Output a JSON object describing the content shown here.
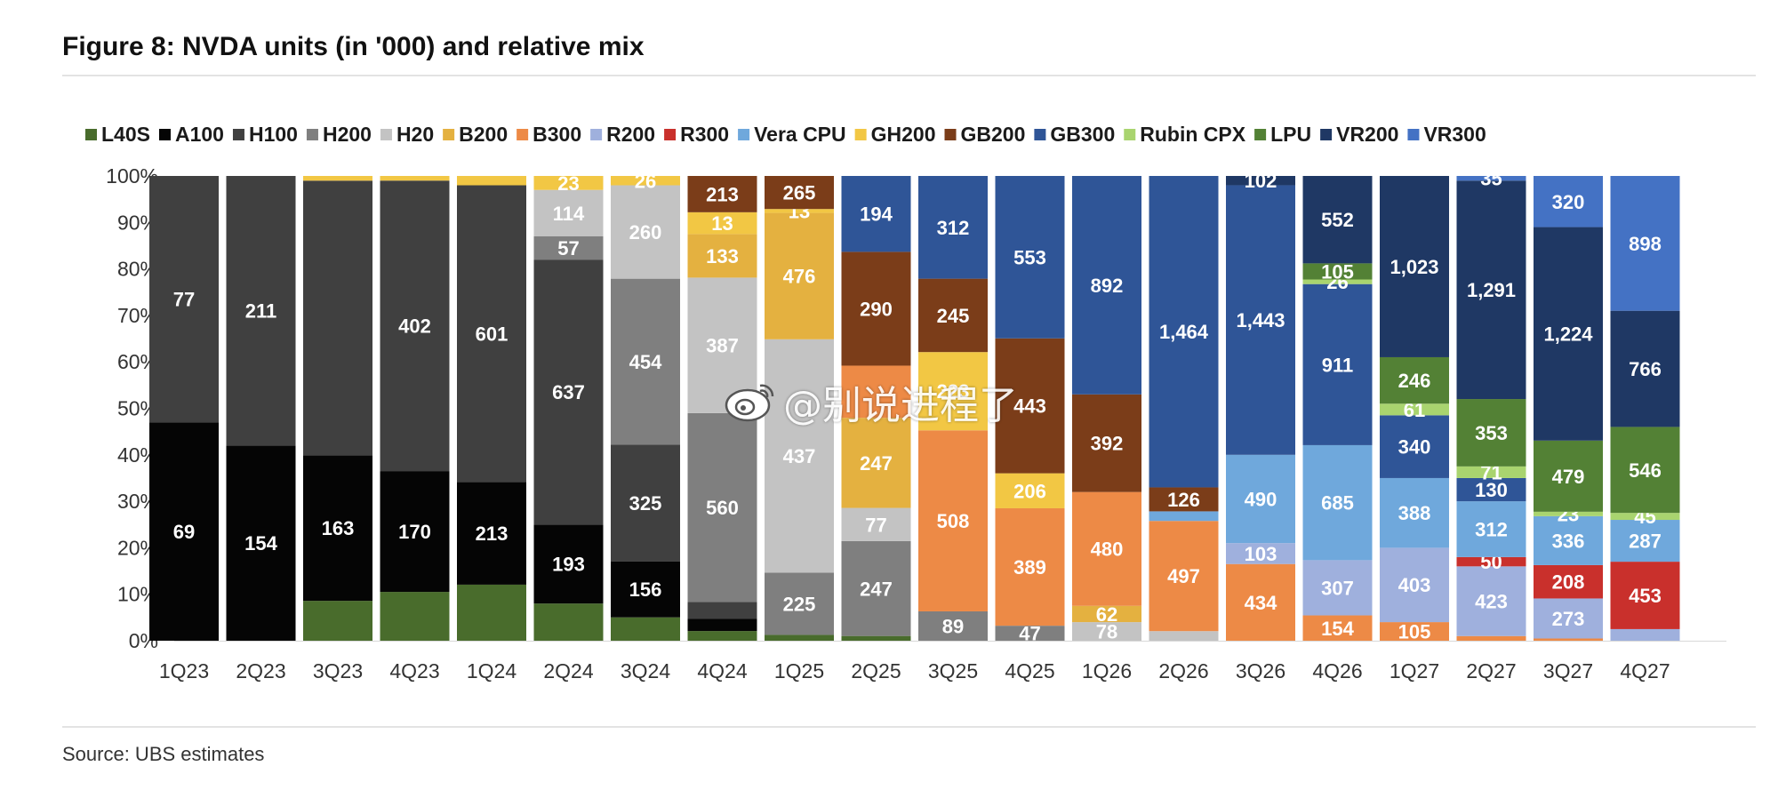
{
  "title": "Figure 8: NVDA units (in '000) and relative mix",
  "source": "Source: UBS estimates",
  "watermark": {
    "text": "@别说进程了",
    "icon": "weibo-icon"
  },
  "chart_data": {
    "type": "bar",
    "stacked": "percent",
    "categories": [
      "1Q23",
      "2Q23",
      "3Q23",
      "4Q23",
      "1Q24",
      "2Q24",
      "3Q24",
      "4Q24",
      "1Q25",
      "2Q25",
      "3Q25",
      "4Q25",
      "1Q26",
      "2Q26",
      "3Q26",
      "4Q26",
      "1Q27",
      "2Q27",
      "3Q27",
      "4Q27"
    ],
    "y_ticks": [
      "0%",
      "10%",
      "20%",
      "30%",
      "40%",
      "50%",
      "60%",
      "70%",
      "80%",
      "90%",
      "100%"
    ],
    "ylim": [
      0,
      1
    ],
    "legend_position": "top",
    "grid": false,
    "series": [
      {
        "name": "L40S",
        "color": "#496c2c",
        "values": [
          0,
          0,
          0.085,
          0.105,
          0.12,
          0.08,
          0.05,
          0.02,
          0.015,
          0.01,
          0,
          0,
          0,
          0,
          0,
          0,
          0,
          0,
          0,
          0
        ]
      },
      {
        "name": "A100",
        "color": "#050505",
        "values": [
          0.47,
          0.42,
          0.31,
          0.26,
          0.22,
          0.17,
          0.12,
          0.025,
          0,
          0,
          0,
          0,
          0,
          0,
          0,
          0,
          0,
          0,
          0,
          0
        ],
        "labels": [
          "69",
          "154",
          "163",
          "170",
          "213",
          "193",
          "156",
          "",
          "",
          "",
          "",
          "",
          "",
          "",
          "",
          "",
          "",
          "",
          "",
          ""
        ]
      },
      {
        "name": "H100",
        "color": "#404040",
        "values": [
          0.53,
          0.58,
          0.585,
          0.625,
          0.635,
          0.57,
          0.25,
          0.035,
          0,
          0,
          0,
          0,
          0,
          0,
          0,
          0,
          0,
          0,
          0,
          0
        ],
        "labels": [
          "77",
          "211",
          "",
          "402",
          "601",
          "637",
          "325",
          "",
          "",
          "",
          "",
          "",
          "",
          "",
          "",
          "",
          "",
          "",
          "",
          ""
        ]
      },
      {
        "name": "H200",
        "color": "#7f7f7f",
        "values": [
          0,
          0,
          0,
          0,
          0,
          0.05,
          0.355,
          0.39,
          0.16,
          0.2,
          0.06,
          0.03,
          0,
          0,
          0,
          0,
          0,
          0,
          0,
          0
        ],
        "labels": [
          "",
          "",
          "",
          "",
          "",
          "57",
          "454",
          "560",
          "225",
          "247",
          "89",
          "47",
          "",
          "",
          "",
          "",
          "",
          "",
          "",
          ""
        ]
      },
      {
        "name": "H20",
        "color": "#c3c3c3",
        "values": [
          0,
          0,
          0,
          0,
          0,
          0.1,
          0.2,
          0.28,
          0.6,
          0.07,
          0,
          0,
          0.04,
          0.02,
          0,
          0,
          0,
          0,
          0,
          0
        ],
        "labels": [
          "",
          "",
          "",
          "",
          "",
          "114",
          "260",
          "387",
          "437",
          "77",
          "",
          "",
          "78",
          "",
          "",
          "",
          "",
          "",
          "",
          ""
        ]
      },
      {
        "name": "B200",
        "color": "#e4b140",
        "values": [
          0,
          0,
          0,
          0,
          0,
          0,
          0,
          0.09,
          0.325,
          0.19,
          0,
          0,
          0.035,
          0,
          0,
          0,
          0,
          0,
          0,
          0
        ],
        "labels": [
          "",
          "",
          "",
          "",
          "",
          "",
          "",
          "133",
          "476",
          "247",
          "",
          "",
          "62",
          "",
          "",
          "",
          "",
          "",
          "",
          ""
        ]
      },
      {
        "name": "B300",
        "color": "#ed8a46",
        "values": [
          0,
          0,
          0,
          0,
          0,
          0,
          0,
          0,
          0,
          0.11,
          0.37,
          0.235,
          0.245,
          0.23,
          0.165,
          0.055,
          0.04,
          0.01,
          0.005,
          0
        ],
        "labels": [
          "",
          "",
          "",
          "",
          "",
          "",
          "",
          "",
          "",
          "",
          "508",
          "389",
          "480",
          "497",
          "434",
          "154",
          "105",
          "",
          "",
          ""
        ]
      },
      {
        "name": "R200",
        "color": "#9fb0dd",
        "values": [
          0,
          0,
          0,
          0,
          0,
          0,
          0,
          0,
          0,
          0,
          0,
          0,
          0,
          0,
          0.045,
          0.12,
          0.16,
          0.15,
          0.09,
          0.025
        ],
        "labels": [
          "",
          "",
          "",
          "",
          "",
          "",
          "",
          "",
          "",
          "",
          "",
          "",
          "",
          "",
          "103",
          "307",
          "403",
          "423",
          "273",
          ""
        ]
      },
      {
        "name": "R300",
        "color": "#c9302c",
        "values": [
          0,
          0,
          0,
          0,
          0,
          0,
          0,
          0,
          0,
          0,
          0,
          0,
          0,
          0,
          0,
          0,
          0,
          0.02,
          0.075,
          0.145
        ],
        "labels": [
          "",
          "",
          "",
          "",
          "",
          "",
          "",
          "",
          "",
          "",
          "",
          "",
          "",
          "",
          "",
          "",
          "",
          "50",
          "208",
          "453"
        ]
      },
      {
        "name": "Vera CPU",
        "color": "#6fa8dc",
        "values": [
          0,
          0,
          0,
          0,
          0,
          0,
          0,
          0,
          0,
          0,
          0,
          0,
          0,
          0.02,
          0.19,
          0.25,
          0.15,
          0.12,
          0.11,
          0.09
        ],
        "labels": [
          "",
          "",
          "",
          "",
          "",
          "",
          "",
          "",
          "",
          "",
          "",
          "",
          "",
          "",
          "490",
          "685",
          "388",
          "312",
          "336",
          "287"
        ]
      },
      {
        "name": "GH200",
        "color": "#f2c744",
        "values": [
          0,
          0,
          0.01,
          0.01,
          0.02,
          0.03,
          0.02,
          0.045,
          0.01,
          0,
          0.16,
          0.07,
          0,
          0,
          0,
          0,
          0,
          0,
          0,
          0
        ],
        "labels": [
          "",
          "",
          "",
          "",
          "",
          "23",
          "26",
          "13",
          "13",
          "",
          "223",
          "206",
          "",
          "",
          "",
          "",
          "",
          "",
          "",
          ""
        ]
      },
      {
        "name": "GB200",
        "color": "#7b3d19",
        "values": [
          0,
          0,
          0,
          0,
          0,
          0,
          0,
          0.075,
          0.085,
          0.24,
          0.15,
          0.27,
          0.21,
          0.05,
          0,
          0,
          0,
          0,
          0,
          0
        ],
        "labels": [
          "",
          "",
          "",
          "",
          "",
          "",
          "",
          "213",
          "265",
          "290",
          "245",
          "443",
          "392",
          "126",
          "",
          "",
          "",
          "",
          "",
          ""
        ]
      },
      {
        "name": "GB300",
        "color": "#2f5597",
        "values": [
          0,
          0,
          0,
          0,
          0,
          0,
          0,
          0,
          0,
          0.16,
          0.21,
          0.325,
          0.47,
          0.65,
          0.58,
          0.35,
          0.135,
          0.05,
          0,
          0
        ],
        "labels": [
          "",
          "",
          "",
          "",
          "",
          "",
          "",
          "",
          "",
          "194",
          "312",
          "553",
          "892",
          "1,464",
          "1,443",
          "911",
          "340",
          "130",
          "",
          ""
        ]
      },
      {
        "name": "Rubin CPX",
        "color": "#a9d46f",
        "values": [
          0,
          0,
          0,
          0,
          0,
          0,
          0,
          0,
          0,
          0,
          0,
          0,
          0,
          0,
          0,
          0.01,
          0.025,
          0.025,
          0.01,
          0.015
        ],
        "labels": [
          "",
          "",
          "",
          "",
          "",
          "",
          "",
          "",
          "",
          "",
          "",
          "",
          "",
          "",
          "",
          "26",
          "61",
          "71",
          "23",
          "45"
        ]
      },
      {
        "name": "LPU",
        "color": "#538135",
        "values": [
          0,
          0,
          0,
          0,
          0,
          0,
          0,
          0,
          0,
          0,
          0,
          0,
          0,
          0,
          0,
          0.035,
          0.1,
          0.145,
          0.16,
          0.185
        ],
        "labels": [
          "",
          "",
          "",
          "",
          "",
          "",
          "",
          "",
          "",
          "",
          "",
          "",
          "",
          "",
          "",
          "105",
          "246",
          "353",
          "479",
          "546"
        ]
      },
      {
        "name": "VR200",
        "color": "#1f3864",
        "values": [
          0,
          0,
          0,
          0,
          0,
          0,
          0,
          0,
          0,
          0,
          0,
          0,
          0,
          0,
          0.02,
          0.19,
          0.39,
          0.47,
          0.48,
          0.25
        ],
        "labels": [
          "",
          "",
          "",
          "",
          "",
          "",
          "",
          "",
          "",
          "",
          "",
          "",
          "",
          "",
          "102",
          "552",
          "1,023",
          "1,291",
          "1,224",
          "766"
        ]
      },
      {
        "name": "VR300",
        "color": "#4472c4",
        "values": [
          0,
          0,
          0,
          0,
          0,
          0,
          0,
          0,
          0,
          0,
          0,
          0,
          0,
          0,
          0,
          0,
          0,
          0.01,
          0.115,
          0.29
        ],
        "labels": [
          "",
          "",
          "",
          "",
          "",
          "",
          "",
          "",
          "",
          "",
          "",
          "",
          "",
          "",
          "",
          "",
          "",
          "35",
          "320",
          "898"
        ]
      }
    ]
  }
}
